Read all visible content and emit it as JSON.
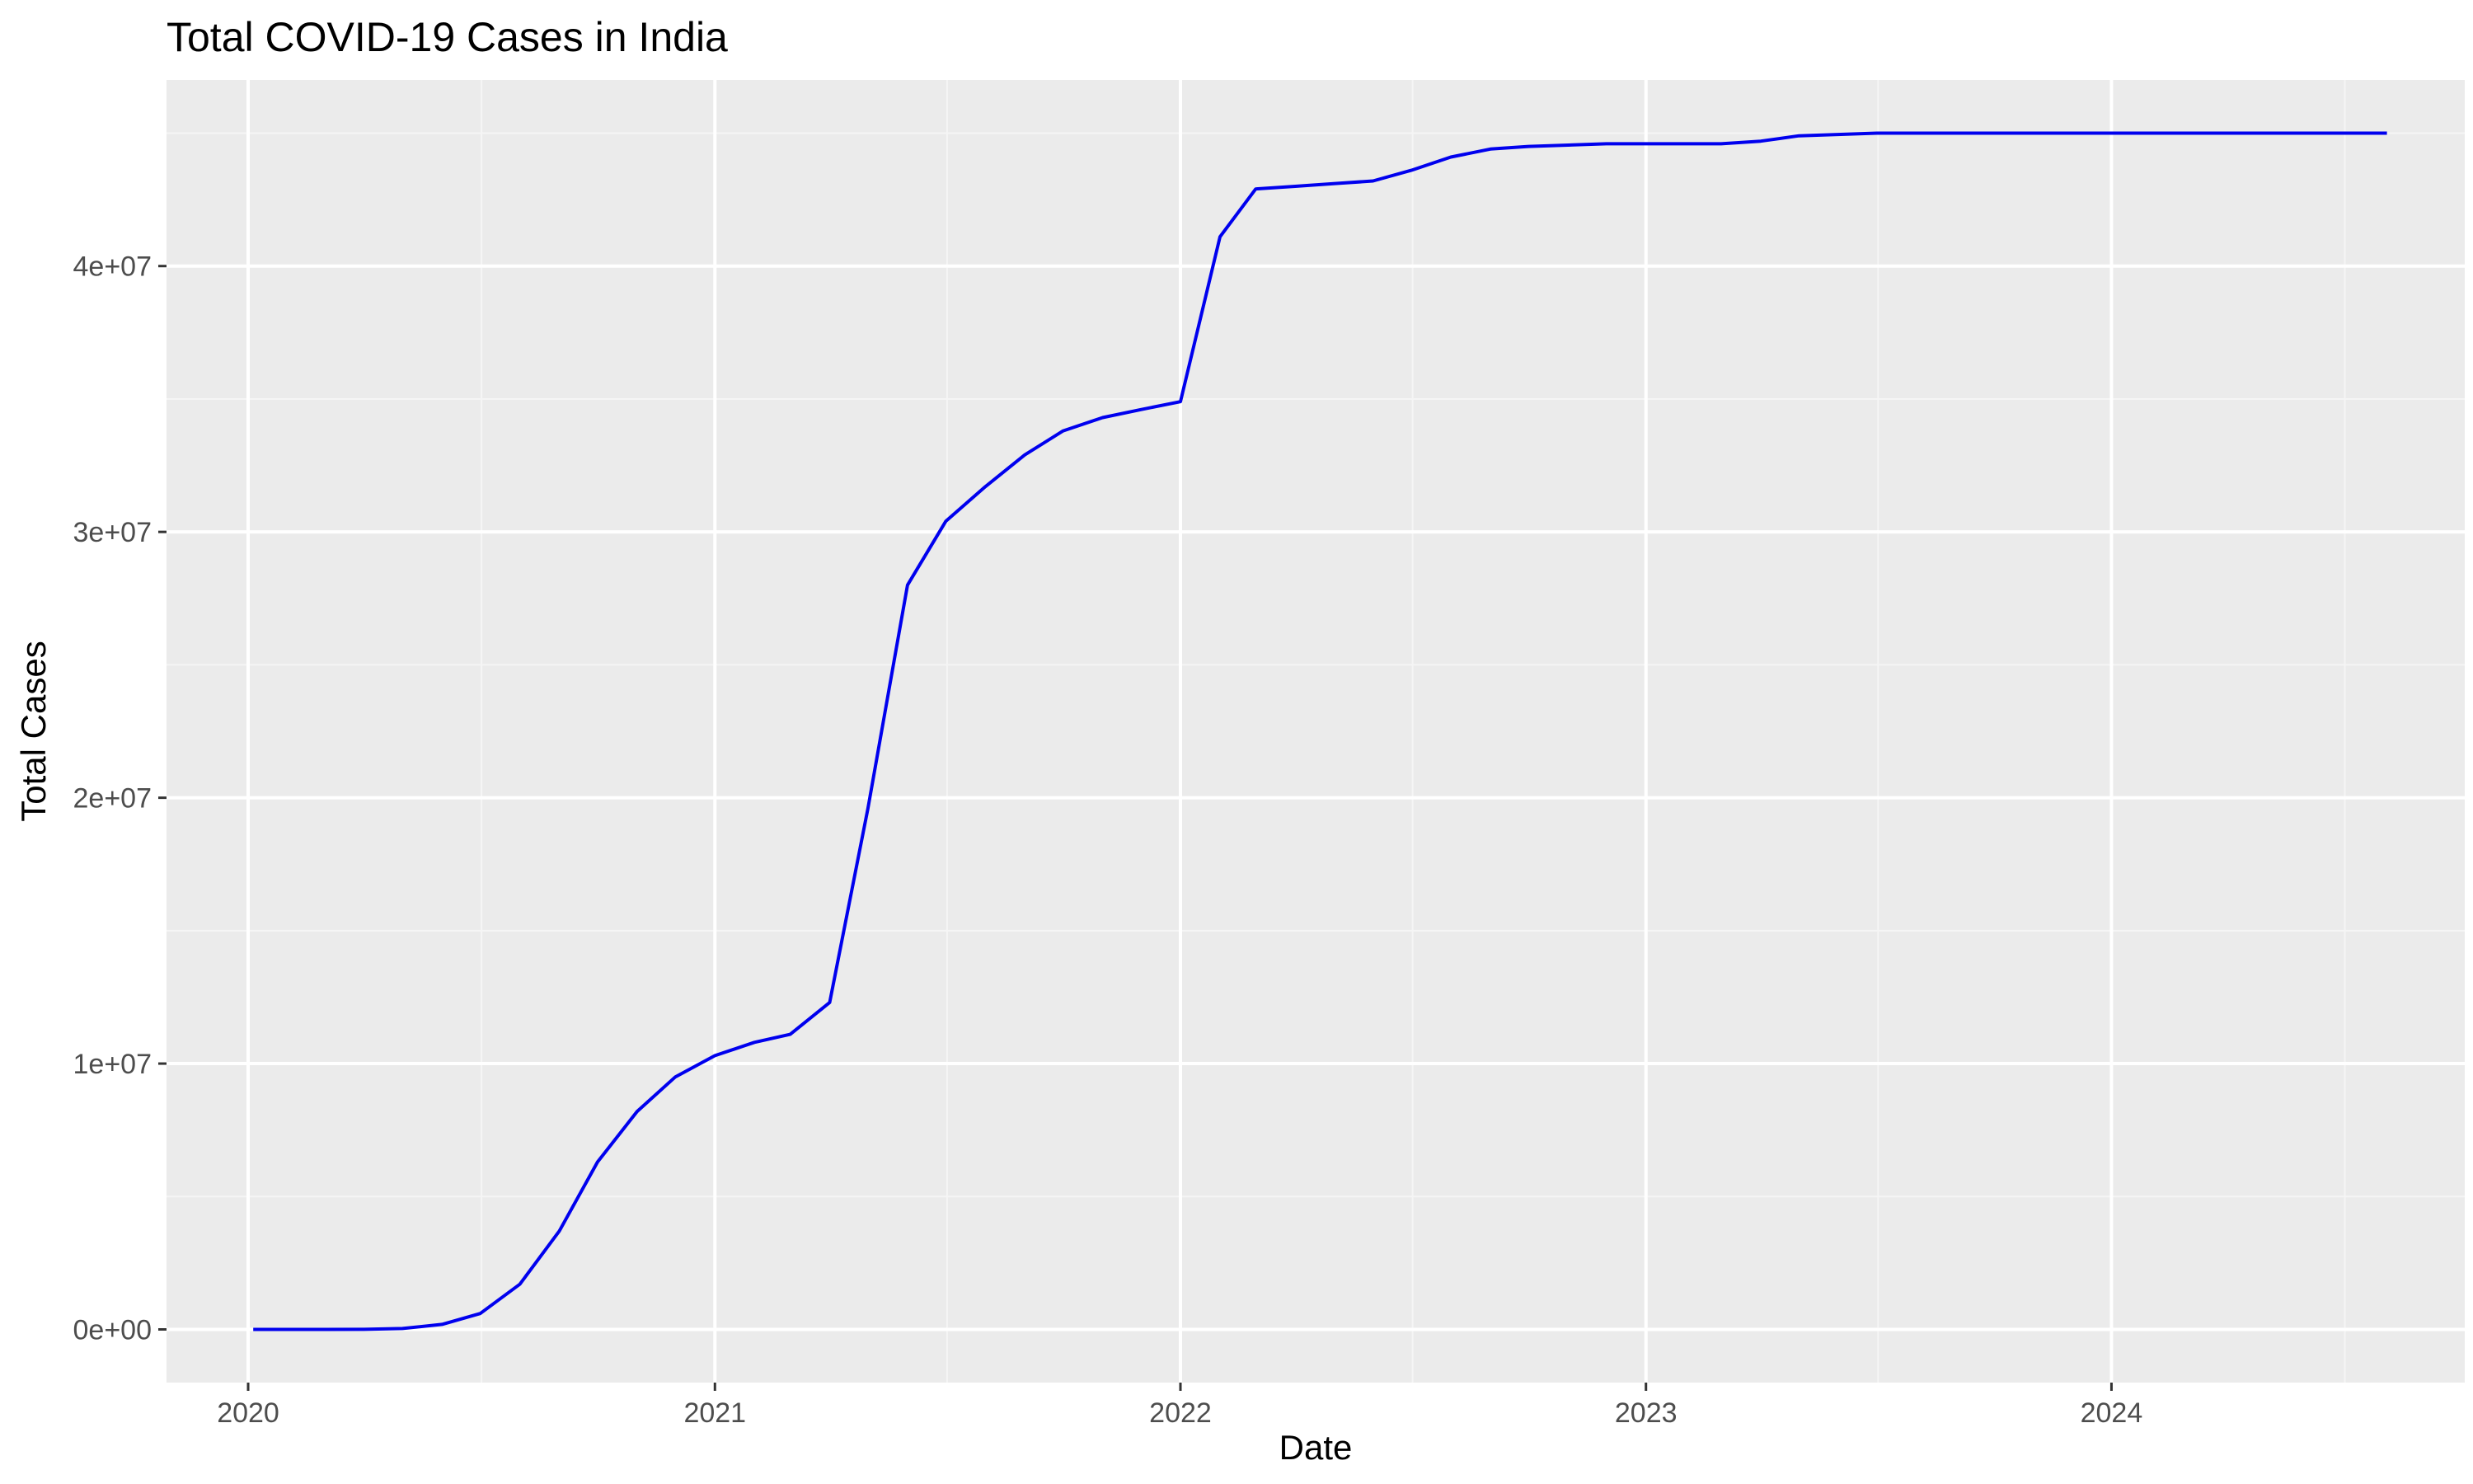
{
  "chart_data": {
    "type": "line",
    "title": "Total COVID-19 Cases in India",
    "xlabel": "Date",
    "ylabel": "Total Cases",
    "x_axis_type": "date",
    "xlim": [
      "2019-10-29",
      "2024-10-04"
    ],
    "ylim": [
      -2000000,
      47000000
    ],
    "x_ticks": [
      {
        "date": "2020-01-01",
        "label": "2020"
      },
      {
        "date": "2021-01-01",
        "label": "2021"
      },
      {
        "date": "2022-01-01",
        "label": "2022"
      },
      {
        "date": "2023-01-01",
        "label": "2023"
      },
      {
        "date": "2024-01-01",
        "label": "2024"
      }
    ],
    "x_minor_ticks": [
      "2020-07-02",
      "2021-07-02",
      "2022-07-02",
      "2023-07-02",
      "2024-07-02"
    ],
    "y_ticks": [
      {
        "value": 0,
        "label": "0e+00"
      },
      {
        "value": 10000000,
        "label": "1e+07"
      },
      {
        "value": 20000000,
        "label": "2e+07"
      },
      {
        "value": 30000000,
        "label": "3e+07"
      },
      {
        "value": 40000000,
        "label": "4e+07"
      }
    ],
    "y_minor_ticks": [
      5000000,
      15000000,
      25000000,
      35000000,
      45000000
    ],
    "grid": true,
    "legend": "none",
    "colors": {
      "line": "#0000ee",
      "panel_background": "#ebebeb",
      "grid_major": "#ffffff",
      "grid_minor": "#f5f5f5",
      "tick_label": "#4d4d4d",
      "tick_mark": "#333333"
    },
    "series": [
      {
        "values": [
          {
            "x": "2020-01-05",
            "y": 0
          },
          {
            "x": "2020-03-01",
            "y": 3
          },
          {
            "x": "2020-04-01",
            "y": 2000
          },
          {
            "x": "2020-05-01",
            "y": 35000
          },
          {
            "x": "2020-06-01",
            "y": 190000
          },
          {
            "x": "2020-07-01",
            "y": 600000
          },
          {
            "x": "2020-08-01",
            "y": 1700000
          },
          {
            "x": "2020-09-01",
            "y": 3700000
          },
          {
            "x": "2020-10-01",
            "y": 6300000
          },
          {
            "x": "2020-11-01",
            "y": 8200000
          },
          {
            "x": "2020-12-01",
            "y": 9500000
          },
          {
            "x": "2021-01-01",
            "y": 10300000
          },
          {
            "x": "2021-02-01",
            "y": 10800000
          },
          {
            "x": "2021-03-01",
            "y": 11100000
          },
          {
            "x": "2021-04-01",
            "y": 12300000
          },
          {
            "x": "2021-05-01",
            "y": 19600000
          },
          {
            "x": "2021-06-01",
            "y": 28000000
          },
          {
            "x": "2021-07-01",
            "y": 30400000
          },
          {
            "x": "2021-08-01",
            "y": 31700000
          },
          {
            "x": "2021-09-01",
            "y": 32900000
          },
          {
            "x": "2021-10-01",
            "y": 33800000
          },
          {
            "x": "2021-11-01",
            "y": 34300000
          },
          {
            "x": "2021-12-01",
            "y": 34600000
          },
          {
            "x": "2022-01-01",
            "y": 34900000
          },
          {
            "x": "2022-02-01",
            "y": 41100000
          },
          {
            "x": "2022-03-01",
            "y": 42900000
          },
          {
            "x": "2022-04-01",
            "y": 43000000
          },
          {
            "x": "2022-05-01",
            "y": 43100000
          },
          {
            "x": "2022-06-01",
            "y": 43200000
          },
          {
            "x": "2022-07-01",
            "y": 43600000
          },
          {
            "x": "2022-08-01",
            "y": 44100000
          },
          {
            "x": "2022-09-01",
            "y": 44400000
          },
          {
            "x": "2022-10-01",
            "y": 44500000
          },
          {
            "x": "2022-12-01",
            "y": 44600000
          },
          {
            "x": "2023-03-01",
            "y": 44600000
          },
          {
            "x": "2023-04-01",
            "y": 44700000
          },
          {
            "x": "2023-05-01",
            "y": 44900000
          },
          {
            "x": "2023-07-01",
            "y": 45000000
          },
          {
            "x": "2024-01-01",
            "y": 45000000
          },
          {
            "x": "2024-08-04",
            "y": 45000000
          }
        ]
      }
    ]
  }
}
